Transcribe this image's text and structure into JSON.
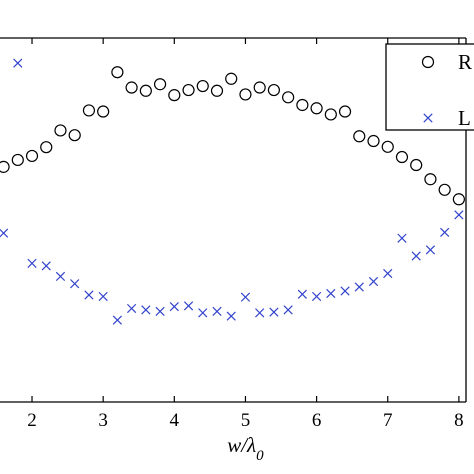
{
  "chart_data": {
    "type": "scatter",
    "xlabel_main": "w/λ",
    "xlabel_sub": "0",
    "xticks": [
      2,
      3,
      4,
      5,
      6,
      7,
      8
    ],
    "xlim": [
      1.55,
      8.1
    ],
    "ylim": [
      0,
      1
    ],
    "grid": false,
    "legend_position": "top-right",
    "series": [
      {
        "name": "R",
        "marker": "circle",
        "color": "#000000",
        "x": [
          1.6,
          1.8,
          2.0,
          2.2,
          2.4,
          2.6,
          2.8,
          3.0,
          3.2,
          3.4,
          3.6,
          3.8,
          4.0,
          4.2,
          4.4,
          4.6,
          4.8,
          5.0,
          5.2,
          5.4,
          5.6,
          5.8,
          6.0,
          6.2,
          6.4,
          6.6,
          6.8,
          7.0,
          7.2,
          7.4,
          7.6,
          7.8,
          8.0
        ],
        "values": [
          0.646,
          0.665,
          0.676,
          0.7,
          0.746,
          0.733,
          0.801,
          0.798,
          0.906,
          0.864,
          0.855,
          0.873,
          0.843,
          0.857,
          0.868,
          0.855,
          0.888,
          0.845,
          0.864,
          0.857,
          0.837,
          0.816,
          0.807,
          0.79,
          0.798,
          0.73,
          0.717,
          0.701,
          0.673,
          0.651,
          0.612,
          0.583,
          0.557
        ]
      },
      {
        "name": "L",
        "marker": "x",
        "color": "#3344cc",
        "x": [
          1.6,
          1.8,
          2.0,
          2.2,
          2.4,
          2.6,
          2.8,
          3.0,
          3.2,
          3.4,
          3.6,
          3.8,
          4.0,
          4.2,
          4.4,
          4.6,
          4.8,
          5.0,
          5.2,
          5.4,
          5.6,
          5.8,
          6.0,
          6.2,
          6.4,
          6.6,
          6.8,
          7.0,
          7.2,
          7.4,
          7.6,
          7.8,
          8.0
        ],
        "values": [
          0.464,
          0.931,
          0.381,
          0.374,
          0.345,
          0.325,
          0.294,
          0.29,
          0.225,
          0.257,
          0.253,
          0.249,
          0.262,
          0.264,
          0.245,
          0.249,
          0.236,
          0.288,
          0.245,
          0.247,
          0.253,
          0.296,
          0.29,
          0.298,
          0.305,
          0.316,
          0.331,
          0.353,
          0.45,
          0.401,
          0.418,
          0.466,
          0.514
        ]
      }
    ]
  }
}
